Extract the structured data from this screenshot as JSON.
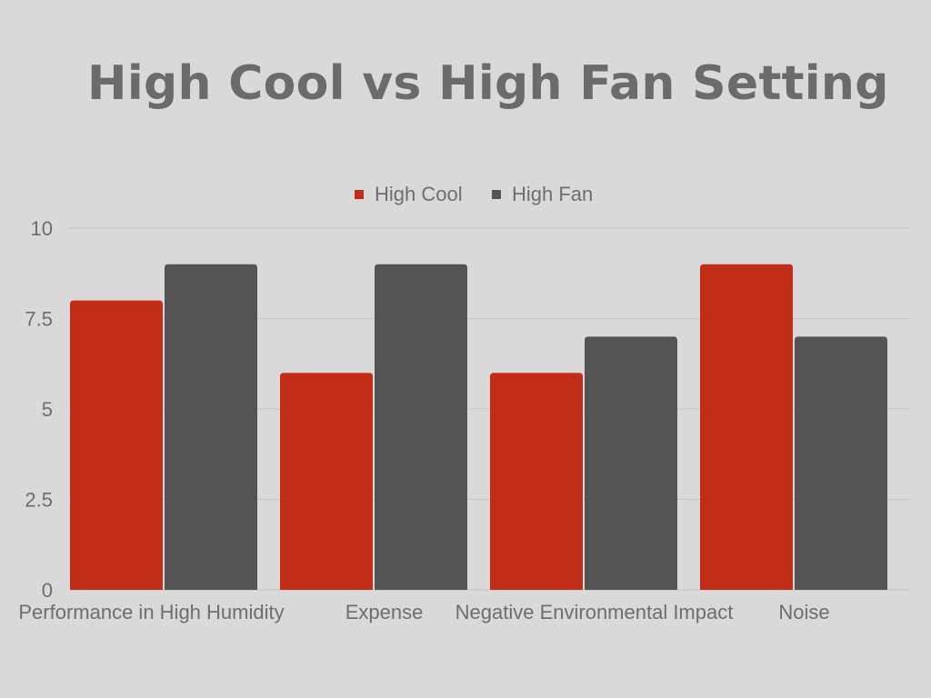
{
  "chart_data": {
    "type": "bar",
    "title": "High Cool vs High Fan Setting",
    "categories": [
      "Performance in High Humidity",
      "Expense",
      "Negative Environmental Impact",
      "Noise"
    ],
    "series": [
      {
        "name": "High Cool",
        "color": "#c22d18",
        "values": [
          8,
          6,
          6,
          9
        ]
      },
      {
        "name": "High Fan",
        "color": "#545454",
        "values": [
          9,
          9,
          7,
          7
        ]
      }
    ],
    "ylim": [
      0,
      10
    ],
    "yticks": [
      "0",
      "2.5",
      "5",
      "7.5",
      "10"
    ],
    "grid": true,
    "legend": "top-center"
  }
}
